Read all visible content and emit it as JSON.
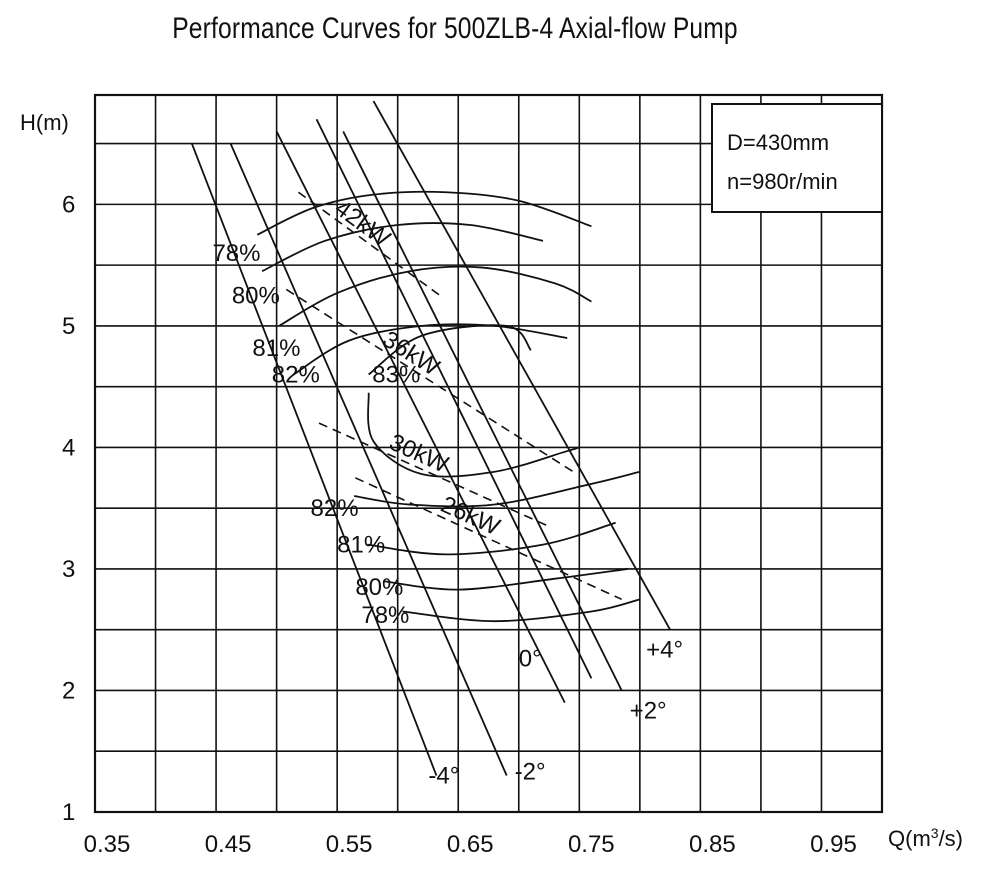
{
  "chart_data": {
    "type": "line",
    "title": "Performance Curves for 500ZLB-4 Axial-flow Pump",
    "xlabel": "Q(m",
    "xlabel_sup": "3",
    "xlabel_tail": "/s)",
    "ylabel": "H(m)",
    "xlim": [
      0.35,
      1.0
    ],
    "ylim": [
      1.0,
      6.9
    ],
    "x_ticks": [
      0.35,
      0.45,
      0.55,
      0.65,
      0.75,
      0.85,
      0.95
    ],
    "x_tick_labels": [
      "0.35",
      "0.45",
      "0.55",
      "0.65",
      "0.75",
      "0.85",
      "0.95"
    ],
    "y_ticks": [
      1,
      2,
      3,
      4,
      5,
      6
    ],
    "y_tick_labels": [
      "1",
      "2",
      "3",
      "4",
      "5",
      "6"
    ],
    "grid": true,
    "info_box": [
      "D=430mm",
      "n=980r/min"
    ],
    "blade_angle_curves": [
      {
        "name": "-4°",
        "points": [
          [
            0.43,
            6.5
          ],
          [
            0.632,
            1.3
          ]
        ]
      },
      {
        "name": "-2°",
        "points": [
          [
            0.462,
            6.5
          ],
          [
            0.69,
            1.3
          ]
        ]
      },
      {
        "name": "0°",
        "points": [
          [
            0.5,
            6.6
          ],
          [
            0.738,
            1.9
          ]
        ]
      },
      {
        "name": "+2°",
        "points": [
          [
            0.555,
            6.6
          ],
          [
            0.785,
            2.0
          ]
        ]
      },
      {
        "name": "+4°",
        "points": [
          [
            0.58,
            6.85
          ],
          [
            0.825,
            2.5
          ]
        ]
      },
      {
        "name": "",
        "points": [
          [
            0.533,
            6.7
          ],
          [
            0.76,
            2.1
          ]
        ]
      }
    ],
    "power_lines": [
      {
        "name": "42kW",
        "points": [
          [
            0.518,
            6.1
          ],
          [
            0.635,
            5.25
          ]
        ]
      },
      {
        "name": "36kW",
        "points": [
          [
            0.508,
            5.3
          ],
          [
            0.745,
            3.8
          ]
        ]
      },
      {
        "name": "30kW",
        "points": [
          [
            0.535,
            4.2
          ],
          [
            0.725,
            3.35
          ]
        ]
      },
      {
        "name": "26kW",
        "points": [
          [
            0.565,
            3.75
          ],
          [
            0.785,
            2.75
          ]
        ]
      }
    ],
    "efficiency_contours": [
      {
        "name": "78%",
        "label_pos": [
          0.447,
          5.6
        ],
        "points": [
          [
            0.484,
            5.75
          ],
          [
            0.53,
            5.97
          ],
          [
            0.58,
            6.08
          ],
          [
            0.64,
            6.1
          ],
          [
            0.7,
            6.03
          ],
          [
            0.76,
            5.82
          ]
        ]
      },
      {
        "name": "80%",
        "label_pos": [
          0.463,
          5.25
        ],
        "points": [
          [
            0.488,
            5.45
          ],
          [
            0.54,
            5.7
          ],
          [
            0.6,
            5.83
          ],
          [
            0.66,
            5.83
          ],
          [
            0.72,
            5.7
          ]
        ]
      },
      {
        "name": "81%",
        "label_pos": [
          0.48,
          4.82
        ],
        "points": [
          [
            0.502,
            5.0
          ],
          [
            0.55,
            5.27
          ],
          [
            0.61,
            5.45
          ],
          [
            0.67,
            5.48
          ],
          [
            0.73,
            5.35
          ],
          [
            0.76,
            5.2
          ]
        ]
      },
      {
        "name": "82%",
        "label_pos": [
          0.496,
          4.6
        ],
        "points": [
          [
            0.514,
            4.6
          ],
          [
            0.56,
            4.88
          ],
          [
            0.62,
            5.0
          ],
          [
            0.68,
            5.0
          ],
          [
            0.74,
            4.9
          ]
        ]
      },
      {
        "name": "83%",
        "label_pos": [
          0.579,
          4.6
        ],
        "points": [
          [
            0.576,
            4.6
          ],
          [
            0.62,
            4.92
          ],
          [
            0.69,
            5.0
          ],
          [
            0.71,
            4.8
          ]
        ]
      },
      {
        "name": "83%",
        "label_pos": null,
        "points": [
          [
            0.576,
            4.45
          ],
          [
            0.58,
            4.05
          ],
          [
            0.62,
            3.78
          ],
          [
            0.68,
            3.8
          ],
          [
            0.74,
            3.97
          ],
          [
            0.75,
            4.0
          ]
        ]
      },
      {
        "name": "82%",
        "label_pos": [
          0.528,
          3.5
        ],
        "points": [
          [
            0.564,
            3.6
          ],
          [
            0.61,
            3.53
          ],
          [
            0.68,
            3.53
          ],
          [
            0.76,
            3.7
          ],
          [
            0.8,
            3.8
          ]
        ]
      },
      {
        "name": "81%",
        "label_pos": [
          0.55,
          3.2
        ],
        "points": [
          [
            0.575,
            3.2
          ],
          [
            0.64,
            3.12
          ],
          [
            0.72,
            3.2
          ],
          [
            0.78,
            3.38
          ]
        ]
      },
      {
        "name": "80%",
        "label_pos": [
          0.565,
          2.85
        ],
        "points": [
          [
            0.588,
            2.9
          ],
          [
            0.65,
            2.83
          ],
          [
            0.73,
            2.92
          ],
          [
            0.79,
            3.0
          ]
        ]
      },
      {
        "name": "78%",
        "label_pos": [
          0.57,
          2.62
        ],
        "points": [
          [
            0.604,
            2.65
          ],
          [
            0.68,
            2.57
          ],
          [
            0.76,
            2.65
          ],
          [
            0.8,
            2.75
          ]
        ]
      }
    ]
  }
}
